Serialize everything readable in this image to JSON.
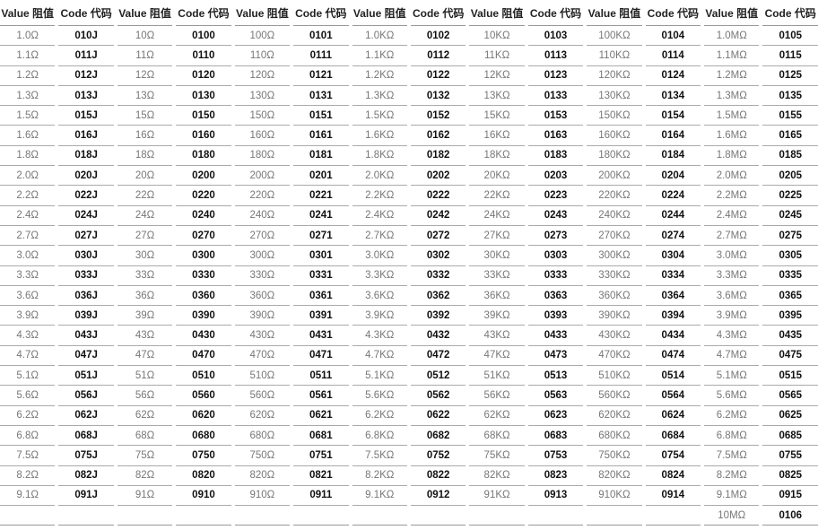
{
  "headers": [
    "Value 阻值",
    "Code 代码",
    "Value 阻值",
    "Code 代码",
    "Value 阻值",
    "Code 代码",
    "Value 阻值",
    "Code 代码",
    "Value 阻值",
    "Code 代码",
    "Value 阻值",
    "Code 代码",
    "Value 阻值",
    "Code 代码"
  ],
  "rows": [
    [
      "1.0Ω",
      "010J",
      "10Ω",
      "0100",
      "100Ω",
      "0101",
      "1.0KΩ",
      "0102",
      "10KΩ",
      "0103",
      "100KΩ",
      "0104",
      "1.0MΩ",
      "0105"
    ],
    [
      "1.1Ω",
      "011J",
      "11Ω",
      "0110",
      "110Ω",
      "0111",
      "1.1KΩ",
      "0112",
      "11KΩ",
      "0113",
      "110KΩ",
      "0114",
      "1.1MΩ",
      "0115"
    ],
    [
      "1.2Ω",
      "012J",
      "12Ω",
      "0120",
      "120Ω",
      "0121",
      "1.2KΩ",
      "0122",
      "12KΩ",
      "0123",
      "120KΩ",
      "0124",
      "1.2MΩ",
      "0125"
    ],
    [
      "1.3Ω",
      "013J",
      "13Ω",
      "0130",
      "130Ω",
      "0131",
      "1.3KΩ",
      "0132",
      "13KΩ",
      "0133",
      "130KΩ",
      "0134",
      "1.3MΩ",
      "0135"
    ],
    [
      "1.5Ω",
      "015J",
      "15Ω",
      "0150",
      "150Ω",
      "0151",
      "1.5KΩ",
      "0152",
      "15KΩ",
      "0153",
      "150KΩ",
      "0154",
      "1.5MΩ",
      "0155"
    ],
    [
      "1.6Ω",
      "016J",
      "16Ω",
      "0160",
      "160Ω",
      "0161",
      "1.6KΩ",
      "0162",
      "16KΩ",
      "0163",
      "160KΩ",
      "0164",
      "1.6MΩ",
      "0165"
    ],
    [
      "1.8Ω",
      "018J",
      "18Ω",
      "0180",
      "180Ω",
      "0181",
      "1.8KΩ",
      "0182",
      "18KΩ",
      "0183",
      "180KΩ",
      "0184",
      "1.8MΩ",
      "0185"
    ],
    [
      "2.0Ω",
      "020J",
      "20Ω",
      "0200",
      "200Ω",
      "0201",
      "2.0KΩ",
      "0202",
      "20KΩ",
      "0203",
      "200KΩ",
      "0204",
      "2.0MΩ",
      "0205"
    ],
    [
      "2.2Ω",
      "022J",
      "22Ω",
      "0220",
      "220Ω",
      "0221",
      "2.2KΩ",
      "0222",
      "22KΩ",
      "0223",
      "220KΩ",
      "0224",
      "2.2MΩ",
      "0225"
    ],
    [
      "2.4Ω",
      "024J",
      "24Ω",
      "0240",
      "240Ω",
      "0241",
      "2.4KΩ",
      "0242",
      "24KΩ",
      "0243",
      "240KΩ",
      "0244",
      "2.4MΩ",
      "0245"
    ],
    [
      "2.7Ω",
      "027J",
      "27Ω",
      "0270",
      "270Ω",
      "0271",
      "2.7KΩ",
      "0272",
      "27KΩ",
      "0273",
      "270KΩ",
      "0274",
      "2.7MΩ",
      "0275"
    ],
    [
      "3.0Ω",
      "030J",
      "30Ω",
      "0300",
      "300Ω",
      "0301",
      "3.0KΩ",
      "0302",
      "30KΩ",
      "0303",
      "300KΩ",
      "0304",
      "3.0MΩ",
      "0305"
    ],
    [
      "3.3Ω",
      "033J",
      "33Ω",
      "0330",
      "330Ω",
      "0331",
      "3.3KΩ",
      "0332",
      "33KΩ",
      "0333",
      "330KΩ",
      "0334",
      "3.3MΩ",
      "0335"
    ],
    [
      "3.6Ω",
      "036J",
      "36Ω",
      "0360",
      "360Ω",
      "0361",
      "3.6KΩ",
      "0362",
      "36KΩ",
      "0363",
      "360KΩ",
      "0364",
      "3.6MΩ",
      "0365"
    ],
    [
      "3.9Ω",
      "039J",
      "39Ω",
      "0390",
      "390Ω",
      "0391",
      "3.9KΩ",
      "0392",
      "39KΩ",
      "0393",
      "390KΩ",
      "0394",
      "3.9MΩ",
      "0395"
    ],
    [
      "4.3Ω",
      "043J",
      "43Ω",
      "0430",
      "430Ω",
      "0431",
      "4.3KΩ",
      "0432",
      "43KΩ",
      "0433",
      "430KΩ",
      "0434",
      "4.3MΩ",
      "0435"
    ],
    [
      "4.7Ω",
      "047J",
      "47Ω",
      "0470",
      "470Ω",
      "0471",
      "4.7KΩ",
      "0472",
      "47KΩ",
      "0473",
      "470KΩ",
      "0474",
      "4.7MΩ",
      "0475"
    ],
    [
      "5.1Ω",
      "051J",
      "51Ω",
      "0510",
      "510Ω",
      "0511",
      "5.1KΩ",
      "0512",
      "51KΩ",
      "0513",
      "510KΩ",
      "0514",
      "5.1MΩ",
      "0515"
    ],
    [
      "5.6Ω",
      "056J",
      "56Ω",
      "0560",
      "560Ω",
      "0561",
      "5.6KΩ",
      "0562",
      "56KΩ",
      "0563",
      "560KΩ",
      "0564",
      "5.6MΩ",
      "0565"
    ],
    [
      "6.2Ω",
      "062J",
      "62Ω",
      "0620",
      "620Ω",
      "0621",
      "6.2KΩ",
      "0622",
      "62KΩ",
      "0623",
      "620KΩ",
      "0624",
      "6.2MΩ",
      "0625"
    ],
    [
      "6.8Ω",
      "068J",
      "68Ω",
      "0680",
      "680Ω",
      "0681",
      "6.8KΩ",
      "0682",
      "68KΩ",
      "0683",
      "680KΩ",
      "0684",
      "6.8MΩ",
      "0685"
    ],
    [
      "7.5Ω",
      "075J",
      "75Ω",
      "0750",
      "750Ω",
      "0751",
      "7.5KΩ",
      "0752",
      "75KΩ",
      "0753",
      "750KΩ",
      "0754",
      "7.5MΩ",
      "0755"
    ],
    [
      "8.2Ω",
      "082J",
      "82Ω",
      "0820",
      "820Ω",
      "0821",
      "8.2KΩ",
      "0822",
      "82KΩ",
      "0823",
      "820KΩ",
      "0824",
      "8.2MΩ",
      "0825"
    ],
    [
      "9.1Ω",
      "091J",
      "91Ω",
      "0910",
      "910Ω",
      "0911",
      "9.1KΩ",
      "0912",
      "91KΩ",
      "0913",
      "910KΩ",
      "0914",
      "9.1MΩ",
      "0915"
    ],
    [
      "",
      "",
      "",
      "",
      "",
      "",
      "",
      "",
      "",
      "",
      "",
      "",
      "10MΩ",
      "0106"
    ]
  ]
}
